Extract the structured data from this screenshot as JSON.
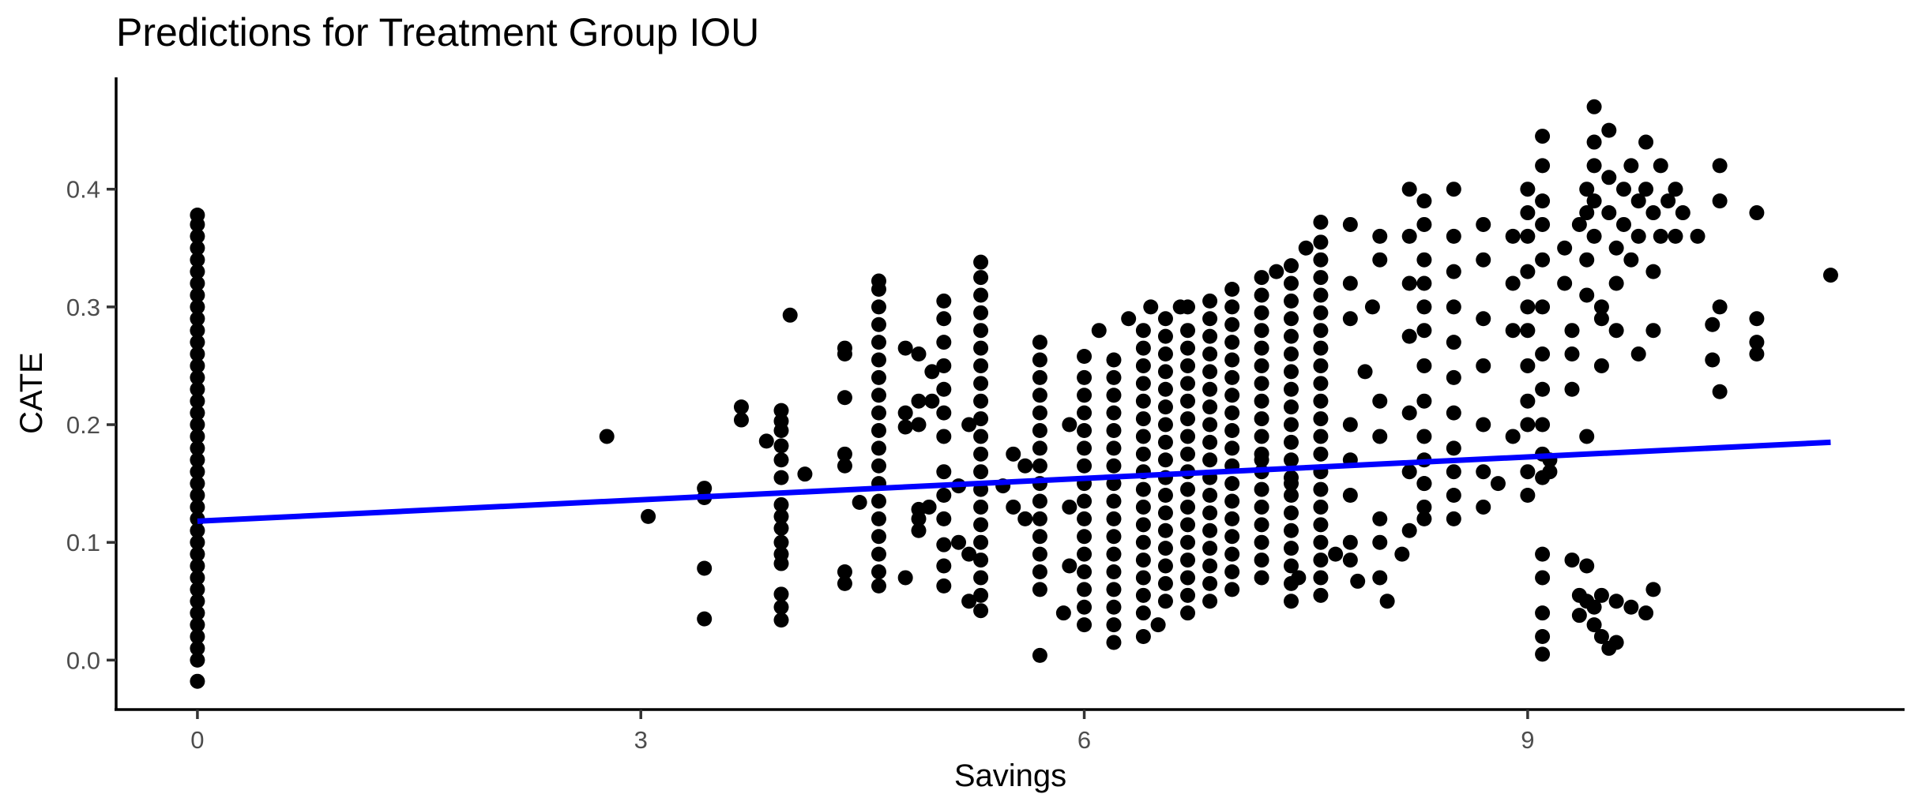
{
  "chart_data": {
    "type": "scatter",
    "title": "Predictions for Treatment Group IOU",
    "xlabel": "Savings",
    "ylabel": "CATE",
    "xlim": [
      -0.55,
      11.55
    ],
    "ylim": [
      -0.042,
      0.495
    ],
    "x_ticks": [
      0,
      3,
      6,
      9
    ],
    "y_ticks": [
      0.0,
      0.1,
      0.2,
      0.3,
      0.4
    ],
    "x_tick_labels": [
      "0",
      "3",
      "6",
      "9"
    ],
    "y_tick_labels": [
      "0.0",
      "0.1",
      "0.2",
      "0.3",
      "0.4"
    ],
    "grid": false,
    "legend": "none",
    "point_color": "#000000",
    "trend_color": "#0000ff",
    "trend_line": {
      "x": [
        0,
        11.05
      ],
      "y": [
        0.118,
        0.185
      ]
    },
    "columns": [
      {
        "x": 0,
        "y": [
          -0.018,
          0.0,
          0.01,
          0.02,
          0.03,
          0.04,
          0.05,
          0.06,
          0.07,
          0.08,
          0.09,
          0.1,
          0.11,
          0.12,
          0.13,
          0.14,
          0.15,
          0.16,
          0.17,
          0.18,
          0.19,
          0.2,
          0.21,
          0.22,
          0.23,
          0.24,
          0.25,
          0.26,
          0.27,
          0.28,
          0.29,
          0.3,
          0.31,
          0.32,
          0.33,
          0.34,
          0.35,
          0.36,
          0.37,
          0.378
        ]
      },
      {
        "x": 4.61,
        "y": [
          0.063,
          0.075,
          0.09,
          0.105,
          0.12,
          0.135,
          0.15,
          0.165,
          0.18,
          0.195,
          0.21,
          0.225,
          0.24,
          0.255,
          0.27,
          0.285,
          0.3,
          0.315,
          0.322
        ]
      },
      {
        "x": 5.3,
        "y": [
          0.042,
          0.055,
          0.07,
          0.085,
          0.1,
          0.115,
          0.13,
          0.145,
          0.16,
          0.175,
          0.19,
          0.205,
          0.22,
          0.235,
          0.25,
          0.265,
          0.28,
          0.295,
          0.31,
          0.325,
          0.338
        ]
      },
      {
        "x": 5.7,
        "y": [
          0.004,
          0.06,
          0.075,
          0.09,
          0.105,
          0.12,
          0.135,
          0.15,
          0.165,
          0.18,
          0.195,
          0.21,
          0.225,
          0.24,
          0.255,
          0.27
        ]
      },
      {
        "x": 6.0,
        "y": [
          0.03,
          0.045,
          0.06,
          0.075,
          0.09,
          0.105,
          0.12,
          0.135,
          0.15,
          0.165,
          0.18,
          0.195,
          0.21,
          0.225,
          0.24,
          0.258
        ]
      },
      {
        "x": 6.2,
        "y": [
          0.015,
          0.03,
          0.045,
          0.06,
          0.075,
          0.09,
          0.105,
          0.12,
          0.135,
          0.15,
          0.165,
          0.18,
          0.195,
          0.21,
          0.225,
          0.24,
          0.255
        ]
      },
      {
        "x": 6.4,
        "y": [
          0.04,
          0.055,
          0.07,
          0.085,
          0.1,
          0.115,
          0.13,
          0.145,
          0.16,
          0.175,
          0.19,
          0.205,
          0.22,
          0.235,
          0.25,
          0.265,
          0.28
        ]
      },
      {
        "x": 6.55,
        "y": [
          0.05,
          0.065,
          0.08,
          0.095,
          0.11,
          0.125,
          0.14,
          0.155,
          0.17,
          0.185,
          0.2,
          0.215,
          0.23,
          0.245,
          0.26,
          0.275,
          0.29
        ]
      },
      {
        "x": 6.7,
        "y": [
          0.04,
          0.055,
          0.07,
          0.085,
          0.1,
          0.115,
          0.13,
          0.145,
          0.16,
          0.175,
          0.19,
          0.205,
          0.22,
          0.235,
          0.25,
          0.265,
          0.28,
          0.3
        ]
      },
      {
        "x": 6.85,
        "y": [
          0.05,
          0.065,
          0.08,
          0.095,
          0.11,
          0.125,
          0.14,
          0.155,
          0.17,
          0.185,
          0.2,
          0.215,
          0.23,
          0.245,
          0.26,
          0.275,
          0.29,
          0.305
        ]
      },
      {
        "x": 7.0,
        "y": [
          0.06,
          0.075,
          0.09,
          0.105,
          0.12,
          0.135,
          0.15,
          0.165,
          0.18,
          0.195,
          0.21,
          0.225,
          0.24,
          0.255,
          0.27,
          0.285,
          0.3,
          0.315
        ]
      },
      {
        "x": 7.2,
        "y": [
          0.07,
          0.085,
          0.1,
          0.115,
          0.13,
          0.145,
          0.16,
          0.175,
          0.19,
          0.205,
          0.22,
          0.235,
          0.25,
          0.265,
          0.28,
          0.295,
          0.31,
          0.325
        ]
      },
      {
        "x": 7.4,
        "y": [
          0.05,
          0.065,
          0.08,
          0.095,
          0.11,
          0.125,
          0.14,
          0.155,
          0.17,
          0.185,
          0.2,
          0.215,
          0.23,
          0.245,
          0.26,
          0.275,
          0.29,
          0.305,
          0.32,
          0.335
        ]
      },
      {
        "x": 7.6,
        "y": [
          0.055,
          0.07,
          0.085,
          0.1,
          0.115,
          0.13,
          0.145,
          0.16,
          0.175,
          0.19,
          0.205,
          0.22,
          0.235,
          0.25,
          0.265,
          0.28,
          0.295,
          0.31,
          0.325,
          0.34,
          0.355,
          0.372
        ]
      },
      {
        "x": 8.3,
        "y": [
          0.12,
          0.13,
          0.15,
          0.17,
          0.19,
          0.22,
          0.25,
          0.28,
          0.3,
          0.32,
          0.34,
          0.37,
          0.39
        ]
      },
      {
        "x": 8.5,
        "y": [
          0.12,
          0.14,
          0.16,
          0.18,
          0.21,
          0.24,
          0.27,
          0.3,
          0.33,
          0.36,
          0.4
        ]
      },
      {
        "x": 9.0,
        "y": [
          0.14,
          0.16,
          0.2,
          0.22,
          0.25,
          0.28,
          0.3,
          0.33,
          0.36,
          0.38,
          0.4
        ]
      },
      {
        "x": 9.1,
        "y": [
          0.005,
          0.02,
          0.04,
          0.07,
          0.09,
          0.155,
          0.175,
          0.2,
          0.23,
          0.26,
          0.3,
          0.34,
          0.37,
          0.39,
          0.42,
          0.445
        ]
      }
    ],
    "points": [
      [
        2.77,
        0.19
      ],
      [
        3.05,
        0.122
      ],
      [
        3.43,
        0.035
      ],
      [
        3.43,
        0.078
      ],
      [
        3.43,
        0.138
      ],
      [
        3.43,
        0.146
      ],
      [
        3.68,
        0.215
      ],
      [
        3.68,
        0.204
      ],
      [
        3.85,
        0.186
      ],
      [
        3.95,
        0.034
      ],
      [
        3.95,
        0.045
      ],
      [
        3.95,
        0.056
      ],
      [
        3.95,
        0.082
      ],
      [
        3.95,
        0.09
      ],
      [
        3.95,
        0.1
      ],
      [
        3.95,
        0.112
      ],
      [
        3.95,
        0.122
      ],
      [
        3.95,
        0.132
      ],
      [
        3.95,
        0.155
      ],
      [
        3.95,
        0.17
      ],
      [
        3.95,
        0.182
      ],
      [
        3.95,
        0.195
      ],
      [
        3.95,
        0.203
      ],
      [
        3.95,
        0.212
      ],
      [
        4.01,
        0.293
      ],
      [
        4.11,
        0.158
      ],
      [
        4.38,
        0.065
      ],
      [
        4.38,
        0.075
      ],
      [
        4.38,
        0.165
      ],
      [
        4.38,
        0.175
      ],
      [
        4.38,
        0.223
      ],
      [
        4.38,
        0.26
      ],
      [
        4.38,
        0.265
      ],
      [
        4.48,
        0.134
      ],
      [
        4.79,
        0.07
      ],
      [
        4.79,
        0.198
      ],
      [
        4.79,
        0.21
      ],
      [
        4.79,
        0.265
      ],
      [
        4.88,
        0.11
      ],
      [
        4.88,
        0.12
      ],
      [
        4.88,
        0.128
      ],
      [
        4.88,
        0.2
      ],
      [
        4.88,
        0.22
      ],
      [
        4.88,
        0.26
      ],
      [
        4.95,
        0.13
      ],
      [
        4.97,
        0.22
      ],
      [
        4.97,
        0.245
      ],
      [
        5.05,
        0.063
      ],
      [
        5.05,
        0.08
      ],
      [
        5.05,
        0.098
      ],
      [
        5.05,
        0.12
      ],
      [
        5.05,
        0.14
      ],
      [
        5.05,
        0.16
      ],
      [
        5.05,
        0.19
      ],
      [
        5.05,
        0.21
      ],
      [
        5.05,
        0.23
      ],
      [
        5.05,
        0.25
      ],
      [
        5.05,
        0.27
      ],
      [
        5.05,
        0.29
      ],
      [
        5.05,
        0.305
      ],
      [
        5.15,
        0.1
      ],
      [
        5.15,
        0.148
      ],
      [
        5.22,
        0.05
      ],
      [
        5.22,
        0.09
      ],
      [
        5.22,
        0.2
      ],
      [
        5.45,
        0.148
      ],
      [
        5.52,
        0.13
      ],
      [
        5.52,
        0.175
      ],
      [
        5.6,
        0.12
      ],
      [
        5.6,
        0.165
      ],
      [
        5.9,
        0.08
      ],
      [
        5.9,
        0.13
      ],
      [
        5.9,
        0.2
      ],
      [
        5.86,
        0.04
      ],
      [
        6.1,
        0.28
      ],
      [
        6.3,
        0.29
      ],
      [
        6.45,
        0.3
      ],
      [
        6.4,
        0.02
      ],
      [
        6.5,
        0.03
      ],
      [
        6.65,
        0.3
      ],
      [
        7.5,
        0.35
      ],
      [
        7.3,
        0.33
      ],
      [
        7.8,
        0.37
      ],
      [
        7.8,
        0.32
      ],
      [
        7.8,
        0.29
      ],
      [
        7.8,
        0.2
      ],
      [
        7.8,
        0.17
      ],
      [
        7.8,
        0.14
      ],
      [
        7.8,
        0.1
      ],
      [
        7.8,
        0.085
      ],
      [
        7.85,
        0.067
      ],
      [
        7.7,
        0.09
      ],
      [
        7.9,
        0.245
      ],
      [
        7.95,
        0.3
      ],
      [
        8.0,
        0.34
      ],
      [
        8.0,
        0.36
      ],
      [
        8.0,
        0.22
      ],
      [
        8.0,
        0.19
      ],
      [
        8.0,
        0.12
      ],
      [
        8.0,
        0.1
      ],
      [
        8.0,
        0.07
      ],
      [
        8.05,
        0.05
      ],
      [
        8.2,
        0.4
      ],
      [
        8.2,
        0.36
      ],
      [
        8.2,
        0.32
      ],
      [
        8.2,
        0.275
      ],
      [
        8.2,
        0.21
      ],
      [
        8.2,
        0.16
      ],
      [
        8.2,
        0.11
      ],
      [
        8.15,
        0.09
      ],
      [
        8.7,
        0.37
      ],
      [
        8.7,
        0.34
      ],
      [
        8.7,
        0.29
      ],
      [
        8.7,
        0.25
      ],
      [
        8.7,
        0.2
      ],
      [
        8.7,
        0.16
      ],
      [
        8.7,
        0.13
      ],
      [
        8.9,
        0.36
      ],
      [
        8.9,
        0.32
      ],
      [
        8.9,
        0.28
      ],
      [
        8.9,
        0.19
      ],
      [
        9.25,
        0.35
      ],
      [
        9.25,
        0.32
      ],
      [
        9.3,
        0.28
      ],
      [
        9.3,
        0.26
      ],
      [
        9.3,
        0.23
      ],
      [
        9.35,
        0.37
      ],
      [
        9.4,
        0.4
      ],
      [
        9.4,
        0.38
      ],
      [
        9.4,
        0.34
      ],
      [
        9.4,
        0.31
      ],
      [
        9.45,
        0.47
      ],
      [
        9.45,
        0.44
      ],
      [
        9.45,
        0.42
      ],
      [
        9.45,
        0.39
      ],
      [
        9.45,
        0.36
      ],
      [
        9.5,
        0.3
      ],
      [
        9.5,
        0.29
      ],
      [
        9.5,
        0.25
      ],
      [
        9.55,
        0.45
      ],
      [
        9.55,
        0.41
      ],
      [
        9.55,
        0.38
      ],
      [
        9.6,
        0.35
      ],
      [
        9.6,
        0.32
      ],
      [
        9.6,
        0.28
      ],
      [
        9.65,
        0.4
      ],
      [
        9.65,
        0.37
      ],
      [
        9.7,
        0.42
      ],
      [
        9.7,
        0.34
      ],
      [
        9.75,
        0.39
      ],
      [
        9.75,
        0.36
      ],
      [
        9.75,
        0.26
      ],
      [
        9.8,
        0.44
      ],
      [
        9.8,
        0.4
      ],
      [
        9.85,
        0.38
      ],
      [
        9.85,
        0.33
      ],
      [
        9.85,
        0.28
      ],
      [
        9.9,
        0.42
      ],
      [
        9.9,
        0.36
      ],
      [
        9.95,
        0.39
      ],
      [
        10.0,
        0.4
      ],
      [
        10.0,
        0.36
      ],
      [
        10.05,
        0.38
      ],
      [
        10.15,
        0.36
      ],
      [
        10.3,
        0.42
      ],
      [
        10.3,
        0.39
      ],
      [
        10.3,
        0.3
      ],
      [
        10.25,
        0.285
      ],
      [
        10.25,
        0.255
      ],
      [
        10.3,
        0.228
      ],
      [
        10.55,
        0.38
      ],
      [
        10.55,
        0.29
      ],
      [
        10.55,
        0.27
      ],
      [
        10.55,
        0.26
      ],
      [
        11.05,
        0.327
      ],
      [
        9.3,
        0.085
      ],
      [
        9.35,
        0.055
      ],
      [
        9.35,
        0.038
      ],
      [
        9.4,
        0.08
      ],
      [
        9.4,
        0.05
      ],
      [
        9.45,
        0.045
      ],
      [
        9.45,
        0.03
      ],
      [
        9.5,
        0.055
      ],
      [
        9.5,
        0.02
      ],
      [
        9.55,
        0.01
      ],
      [
        9.6,
        0.05
      ],
      [
        9.6,
        0.015
      ],
      [
        9.7,
        0.045
      ],
      [
        9.8,
        0.04
      ],
      [
        9.85,
        0.06
      ],
      [
        9.15,
        0.17
      ],
      [
        9.15,
        0.16
      ],
      [
        9.4,
        0.19
      ],
      [
        8.8,
        0.15
      ],
      [
        8.3,
        0.15
      ],
      [
        7.2,
        0.17
      ],
      [
        7.4,
        0.15
      ],
      [
        7.45,
        0.07
      ]
    ]
  }
}
